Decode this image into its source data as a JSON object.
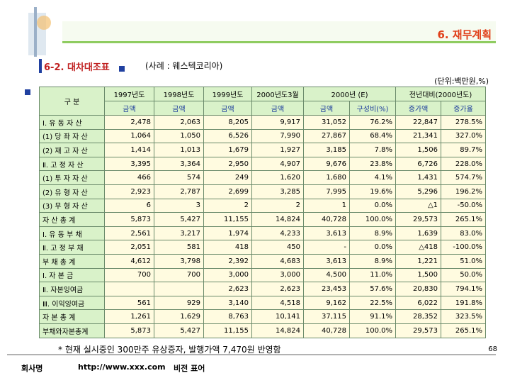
{
  "header": {
    "title": "6. 재무계획",
    "subtitle": "6-2. 대차대조표",
    "case": "(사례 : 웨스텍코리아)",
    "unit": "(단위:백만원,%)"
  },
  "table": {
    "header_top": [
      "구 분",
      "1997년도",
      "1998년도",
      "1999년도",
      "2000년도3월",
      "2000년 (E)",
      "전년대비(2000년도)"
    ],
    "header_sub": [
      "금액",
      "금액",
      "금액",
      "금액",
      "금액",
      "구성비(%)",
      "증가액",
      "증가율"
    ],
    "rows": [
      [
        "Ⅰ. 유 동 자 산",
        "2,478",
        "2,063",
        "8,205",
        "9,917",
        "31,052",
        "76.2%",
        "22,847",
        "278.5%"
      ],
      [
        "(1) 당 좌 자 산",
        "1,064",
        "1,050",
        "6,526",
        "7,990",
        "27,867",
        "68.4%",
        "21,341",
        "327.0%"
      ],
      [
        "(2) 재 고 자 산",
        "1,414",
        "1,013",
        "1,679",
        "1,927",
        "3,185",
        "7.8%",
        "1,506",
        "89.7%"
      ],
      [
        "Ⅱ. 고 정 자 산",
        "3,395",
        "3,364",
        "2,950",
        "4,907",
        "9,676",
        "23.8%",
        "6,726",
        "228.0%"
      ],
      [
        "(1) 투 자 자 산",
        "466",
        "574",
        "249",
        "1,620",
        "1,680",
        "4.1%",
        "1,431",
        "574.7%"
      ],
      [
        "(2) 유 형 자 산",
        "2,923",
        "2,787",
        "2,699",
        "3,285",
        "7,995",
        "19.6%",
        "5,296",
        "196.2%"
      ],
      [
        "(3) 무 형 자 산",
        "6",
        "3",
        "2",
        "2",
        "1",
        "0.0%",
        "△1",
        "-50.0%"
      ],
      [
        "자 산 총 계",
        "5,873",
        "5,427",
        "11,155",
        "14,824",
        "40,728",
        "100.0%",
        "29,573",
        "265.1%"
      ],
      [
        "Ⅰ. 유 동 부 채",
        "2,561",
        "3,217",
        "1,974",
        "4,233",
        "3,613",
        "8.9%",
        "1,639",
        "83.0%"
      ],
      [
        "Ⅱ. 고 정 부 채",
        "2,051",
        "581",
        "418",
        "450",
        "-",
        "0.0%",
        "△418",
        "-100.0%"
      ],
      [
        "부 채 총 계",
        "4,612",
        "3,798",
        "2,392",
        "4,683",
        "3,613",
        "8.9%",
        "1,221",
        "51.0%"
      ],
      [
        "Ⅰ. 자 본 금",
        "700",
        "700",
        "3,000",
        "3,000",
        "4,500",
        "11.0%",
        "1,500",
        "50.0%"
      ],
      [
        "Ⅱ. 자본잉여금",
        null,
        null,
        "2,623",
        "2,623",
        "23,453",
        "57.6%",
        "20,830",
        "794.1%"
      ],
      [
        "Ⅲ. 이익잉여금",
        "561",
        "929",
        "3,140",
        "4,518",
        "9,162",
        "22.5%",
        "6,022",
        "191.8%"
      ],
      [
        "자 본 총 계",
        "1,261",
        "1,629",
        "8,763",
        "10,141",
        "37,115",
        "91.1%",
        "28,352",
        "323.5%"
      ],
      [
        "부채와자본총계",
        "5,873",
        "5,427",
        "11,155",
        "14,824",
        "40,728",
        "100.0%",
        "29,573",
        "265.1%"
      ]
    ]
  },
  "footnote": "* 현재 실시중인 300만주 유상증자, 발행가액 7,470원 반영함",
  "page_number": "68",
  "footer": {
    "company": "회사명",
    "url": "http://www.xxx.com",
    "slogan": "비전 표어"
  }
}
